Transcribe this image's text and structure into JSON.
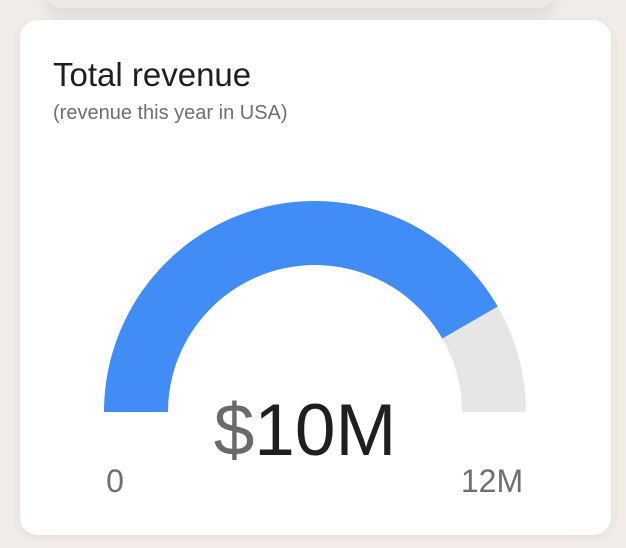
{
  "chart_data": {
    "type": "gauge",
    "title": "Total revenue",
    "subtitle": "(revenue this year in USA)",
    "value": 10,
    "min": 0,
    "max": 12,
    "value_prefix": "$",
    "value_main": "10M",
    "min_label": "0",
    "max_label": "12M",
    "colors": {
      "fill": "#418CF5",
      "track": "#E6E6E6",
      "text": "#1F1F1F",
      "muted_text": "#6F6F6F"
    }
  }
}
